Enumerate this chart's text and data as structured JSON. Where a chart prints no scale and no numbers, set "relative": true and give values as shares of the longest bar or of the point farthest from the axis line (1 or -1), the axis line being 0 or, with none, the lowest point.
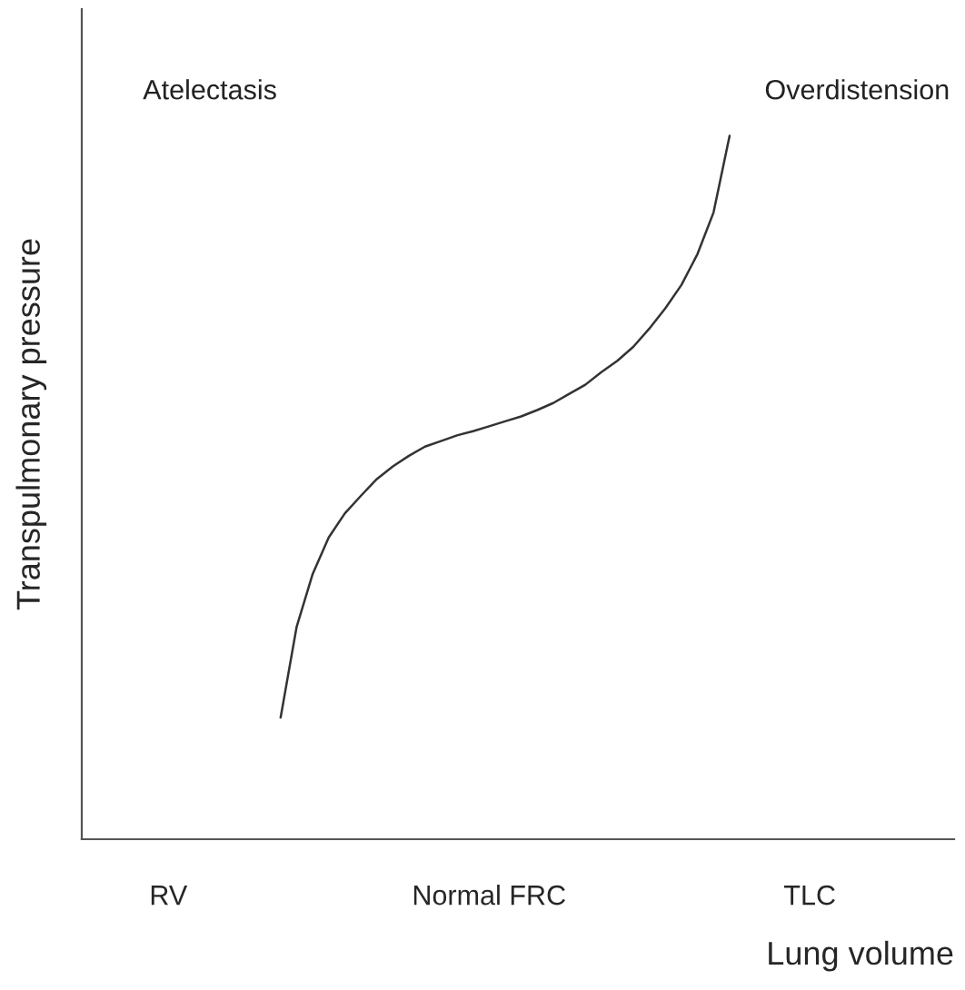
{
  "chart_data": {
    "type": "line",
    "relative": true,
    "xlabel": "Lung volume",
    "ylabel": "Transpulmonary pressure",
    "categories": [
      null,
      null,
      null,
      null,
      "RV",
      null,
      null,
      null,
      null,
      null,
      null,
      null,
      null,
      null,
      null,
      null,
      null,
      null,
      null,
      null,
      null,
      null,
      null,
      null,
      "Normal FRC",
      null,
      null,
      null,
      null,
      null,
      null,
      null,
      null,
      null,
      null,
      null,
      null,
      null,
      null,
      null,
      null,
      null,
      null,
      null,
      "TLC",
      null,
      null,
      null,
      null,
      null
    ],
    "values": [
      null,
      null,
      null,
      null,
      null,
      null,
      null,
      null,
      null,
      null,
      null,
      0.173,
      0.302,
      0.377,
      0.429,
      0.463,
      0.488,
      0.512,
      0.53,
      0.545,
      0.558,
      0.566,
      0.574,
      0.58,
      0.587,
      0.594,
      0.601,
      0.61,
      0.62,
      0.633,
      0.646,
      0.664,
      0.68,
      0.7,
      0.726,
      0.755,
      0.788,
      0.832,
      0.891,
      1.0,
      null,
      null,
      null,
      null,
      null,
      null,
      null,
      null,
      null,
      null
    ],
    "color": "#333333",
    "annotations": [
      "Atelectasis",
      "Overdistension"
    ]
  }
}
